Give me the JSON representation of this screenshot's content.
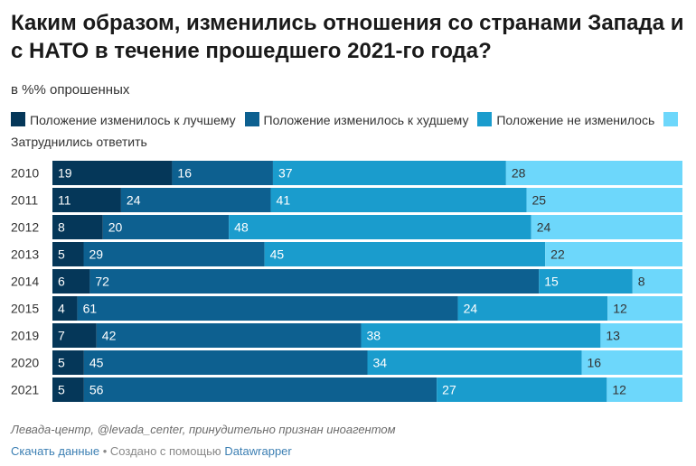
{
  "header": {
    "title": "Каким образом, изменились отношения со странами Запада и с НАТО в течение прошедшего 2021-го года?",
    "subtitle": "в %% опрошенных"
  },
  "footer": {
    "source": "Левада-центр, @levada_center, принудительно признан иноагентом",
    "download_label": "Скачать данные",
    "separator": "•",
    "created_with": "Создано с помощью",
    "tool": "Datawrapper"
  },
  "chart_data": {
    "type": "bar",
    "orientation": "horizontal",
    "stacked": true,
    "normalized_to_100": true,
    "categories": [
      "2010",
      "2011",
      "2012",
      "2013",
      "2014",
      "2015",
      "2019",
      "2020",
      "2021"
    ],
    "series": [
      {
        "name": "Положение изменилось к лучшему",
        "color": "#053759",
        "values": [
          19,
          11,
          8,
          5,
          6,
          4,
          7,
          5,
          5
        ]
      },
      {
        "name": "Положение изменилось к худшему",
        "color": "#0d6090",
        "values": [
          16,
          24,
          20,
          29,
          72,
          61,
          42,
          45,
          56
        ]
      },
      {
        "name": "Положение не изменилось",
        "color": "#1a9ccd",
        "values": [
          37,
          41,
          48,
          45,
          15,
          24,
          38,
          34,
          27
        ]
      },
      {
        "name": "Затруднились ответить",
        "color": "#6dd7fb",
        "values": [
          28,
          25,
          24,
          22,
          8,
          12,
          13,
          16,
          12
        ]
      }
    ],
    "label_colors": [
      "#ffffff",
      "#ffffff",
      "#ffffff",
      "#333333"
    ],
    "legend_position": "top-left",
    "grid": false
  }
}
